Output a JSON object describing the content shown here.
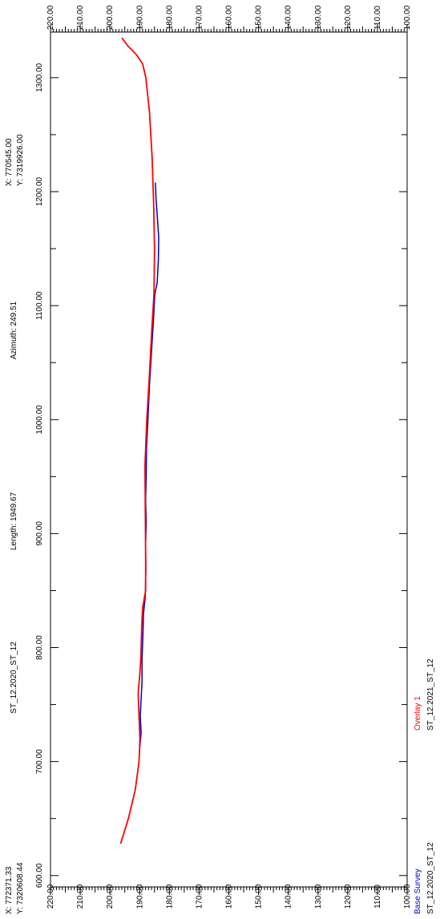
{
  "header": {
    "length": "Length: 1949.67",
    "azimuth": "Azimuth: 249.51",
    "survey_name": "ST_12.2020_ST_12",
    "start_x": "X: 772371.33",
    "start_y": "Y: 7320608.44",
    "end_x": "X: 770545.00",
    "end_y": "Y: 7319926.00"
  },
  "legend": {
    "overlay_label": "Overlay 1",
    "overlay_value": "ST_12.2021_ST_12",
    "base_label": "Base Survey",
    "base_value": "ST_12.2020_ST_12"
  },
  "colors": {
    "overlay": "#ff0000",
    "base": "#0000cc",
    "axis": "#000000",
    "background": "#ffffff"
  },
  "chart_data": {
    "type": "line",
    "orientation": "rotated 90deg clockwise (distance axis runs left side bottom-to-top, elevation axis runs top/bottom right-to-left)",
    "distance_axis": {
      "min": 590,
      "max": 1340,
      "major_ticks": [
        600,
        700,
        800,
        900,
        1000,
        1100,
        1200,
        1300
      ],
      "tick_labels": [
        "600.00",
        "700.00",
        "800.00",
        "900.00",
        "1000.00",
        "1100.00",
        "1200.00",
        "1300.00"
      ]
    },
    "elevation_axis": {
      "min": 100,
      "max": 220,
      "major_ticks": [
        220,
        210,
        200,
        190,
        180,
        170,
        160,
        150,
        140,
        130,
        120,
        110,
        100
      ],
      "tick_labels": [
        "220.00",
        "210.00",
        "200.00",
        "190.00",
        "180.00",
        "170.00",
        "160.00",
        "150.00",
        "140.00",
        "130.00",
        "120.00",
        "110.00",
        "100.00"
      ]
    },
    "series": [
      {
        "name": "Overlay 1",
        "color": "#ff0000",
        "points": [
          [
            628,
            196.4
          ],
          [
            650,
            193.8
          ],
          [
            675,
            191.5
          ],
          [
            700,
            190.2
          ],
          [
            720,
            189.9
          ],
          [
            740,
            190.2
          ],
          [
            760,
            190.5
          ],
          [
            775,
            190.0
          ],
          [
            790,
            189.6
          ],
          [
            810,
            189.4
          ],
          [
            825,
            189.2
          ],
          [
            835,
            189.0
          ],
          [
            850,
            188.0
          ],
          [
            880,
            188.0
          ],
          [
            920,
            188.1
          ],
          [
            960,
            188.2
          ],
          [
            1000,
            187.6
          ],
          [
            1040,
            186.7
          ],
          [
            1080,
            185.9
          ],
          [
            1110,
            185.2
          ],
          [
            1150,
            185.0
          ],
          [
            1190,
            185.3
          ],
          [
            1230,
            185.8
          ],
          [
            1270,
            186.7
          ],
          [
            1300,
            187.9
          ],
          [
            1312,
            189.0
          ],
          [
            1320,
            191.0
          ],
          [
            1328,
            194.0
          ],
          [
            1335,
            196.0
          ]
        ]
      },
      {
        "name": "Base Survey",
        "color": "#0000cc",
        "points": [
          [
            712,
            190.0
          ],
          [
            725,
            189.5
          ],
          [
            740,
            189.8
          ],
          [
            755,
            189.5
          ],
          [
            770,
            189.2
          ],
          [
            790,
            189.2
          ],
          [
            810,
            188.9
          ],
          [
            830,
            188.7
          ],
          [
            845,
            188.1
          ],
          [
            870,
            187.9
          ],
          [
            890,
            188.0
          ],
          [
            910,
            187.8
          ],
          [
            930,
            188.0
          ],
          [
            950,
            187.8
          ],
          [
            975,
            187.7
          ],
          [
            1000,
            187.2
          ],
          [
            1030,
            186.7
          ],
          [
            1060,
            186.0
          ],
          [
            1090,
            185.3
          ],
          [
            1110,
            184.9
          ],
          [
            1120,
            184.1
          ],
          [
            1140,
            183.7
          ],
          [
            1160,
            183.6
          ],
          [
            1180,
            184.1
          ],
          [
            1195,
            184.5
          ],
          [
            1208,
            184.7
          ]
        ]
      }
    ]
  }
}
